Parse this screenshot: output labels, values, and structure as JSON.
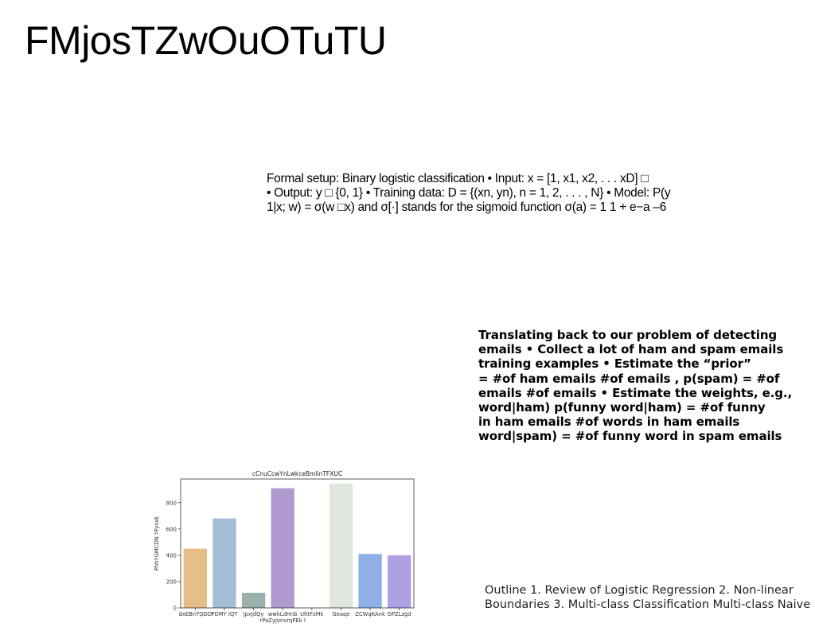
{
  "title": "FMjosTZwOuOTuTU",
  "setup_block": {
    "lines": [
      "Formal setup: Binary logistic classification • Input: x = [1, x1, x2, . . . xD] □",
      "• Output: y □ {0, 1} • Training data: D = {(xn, yn), n = 1, 2, . . . , N} • Model: P(y",
      "1|x; w) = σ(w □x) and σ[·] stands for the sigmoid function σ(a) = 1 1 + e−a –6"
    ]
  },
  "translate_block": {
    "lines": [
      "Translating back to our problem of detecting",
      "emails • Collect a lot of ham and spam emails",
      "training examples • Estimate the “prior”",
      "= #of ham emails #of emails , p(spam) = #of",
      "emails #of emails • Estimate the weights, e.g.,",
      "word|ham) p(funny word|ham) = #of funny",
      "in ham emails #of words in ham emails",
      "word|spam) = #of funny word in spam emails"
    ]
  },
  "outline_block": {
    "lines": [
      "Outline 1. Review of Logistic Regression 2. Non-linear",
      "Boundaries 3. Multi-class Classification Multi-class Naive"
    ]
  },
  "chart_data": {
    "type": "bar",
    "title": "cCnuCcwYnLwkceBmlinTFXUC",
    "xlabel": "",
    "ylabel": "PhhYGMCDN YFysxE",
    "ylim": [
      0,
      980
    ],
    "yticks": [
      0,
      200,
      400,
      600,
      800
    ],
    "categories": [
      "dxEBnTQDD",
      "PDMY IQT",
      "jpxJdQy",
      "wwkLdHnb",
      "UlttFzMk",
      "Geaqe",
      "ZCWqKAnk",
      "GPZLzgd"
    ],
    "category_label_lines": [
      [
        "dxEBnTQDD"
      ],
      [
        "PDMY IQT"
      ],
      [
        "jpxJdQy"
      ],
      [
        "wwkLdHnb",
        "rPaZyjonvrqPEk I"
      ],
      [
        "UlttFzMk"
      ],
      [
        "Geaqe"
      ],
      [
        "ZCWqKAnk"
      ],
      [
        "GPZLzgd"
      ]
    ],
    "values": [
      450,
      680,
      115,
      910,
      0,
      945,
      410,
      400
    ],
    "colors": [
      "#e5bd86",
      "#a3bdd4",
      "#99b0ab",
      "#b09ad0",
      "#cccccc",
      "#dfe5df",
      "#8fb0e6",
      "#ad9fe0"
    ],
    "grid": false,
    "legend": "none"
  }
}
